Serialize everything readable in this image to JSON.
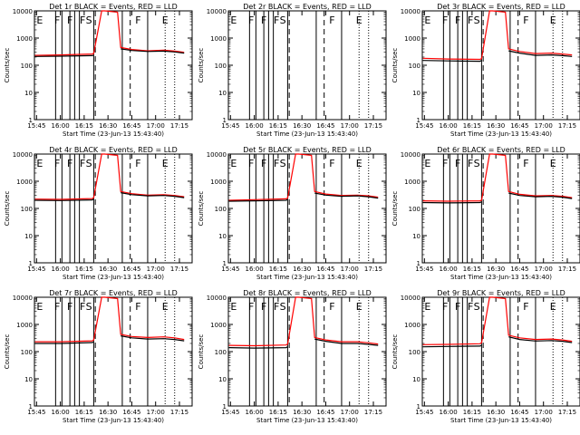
{
  "chart_data": {
    "type": "line",
    "x_unit": "time",
    "time_ticks": [
      "15:45",
      "16:00",
      "16:15",
      "16:30",
      "16:45",
      "17:00",
      "17:15"
    ],
    "y_ticks": [
      "1",
      "10",
      "100",
      "1000",
      "10000"
    ],
    "ylabel": "Counts/sec",
    "xlabel": "Start Time (23-Jun-13 15:43:40)",
    "ylim": [
      1,
      10000
    ],
    "xlim": [
      "15:43:40",
      "17:23:00"
    ],
    "yscale": "log",
    "legend": "BLACK = Events, RED = LLD",
    "colors": {
      "events": "#000000",
      "lld": "#ff0000"
    },
    "event_lines": {
      "solid": [
        "15:57",
        "16:01",
        "16:06",
        "16:09",
        "16:12",
        "16:21",
        "16:39",
        "16:55"
      ],
      "dashed": [
        "16:22",
        "16:44"
      ],
      "dotted": [
        "17:06",
        "17:12"
      ]
    },
    "markers": [
      {
        "label": "E",
        "time": "15:47"
      },
      {
        "label": "F",
        "time": "15:58"
      },
      {
        "label": "F",
        "time": "16:06"
      },
      {
        "label": "F",
        "time": "16:14"
      },
      {
        "label": "S",
        "time": "16:18"
      },
      {
        "label": "F",
        "time": "16:49"
      },
      {
        "label": "E",
        "time": "17:06"
      }
    ],
    "panels": [
      {
        "title": "Det 1r BLACK = Events, RED = LLD",
        "events_level": 220,
        "lld_level": 250,
        "post_level": 330,
        "time": [
          "15:44",
          "16:00",
          "16:20",
          "16:21",
          "16:26",
          "16:28",
          "16:36",
          "16:38",
          "16:45",
          "16:55",
          "17:05",
          "17:12",
          "17:18"
        ],
        "lld": [
          230,
          240,
          260,
          270,
          10000,
          10000,
          9000,
          450,
          380,
          340,
          360,
          330,
          300
        ],
        "events": [
          210,
          215,
          225,
          235,
          null,
          null,
          null,
          400,
          350,
          320,
          330,
          310,
          280
        ]
      },
      {
        "title": "Det 2r BLACK = Events, RED = LLD",
        "events_level": null,
        "lld_level": null,
        "post_level": null,
        "time": [],
        "lld": [],
        "events": []
      },
      {
        "title": "Det 3r BLACK = Events, RED = LLD",
        "events_level": 140,
        "lld_level": 170,
        "post_level": 260,
        "time": [
          "15:44",
          "16:00",
          "16:20",
          "16:21",
          "16:26",
          "16:28",
          "16:36",
          "16:38",
          "16:45",
          "16:55",
          "17:05",
          "17:12",
          "17:18"
        ],
        "lld": [
          180,
          170,
          165,
          175,
          10000,
          10000,
          9000,
          400,
          320,
          270,
          280,
          260,
          240
        ],
        "events": [
          150,
          145,
          140,
          150,
          null,
          null,
          null,
          340,
          280,
          230,
          240,
          225,
          210
        ]
      },
      {
        "title": "Det 4r BLACK = Events, RED = LLD",
        "events_level": 200,
        "lld_level": 220,
        "post_level": 300,
        "time": [
          "15:44",
          "16:00",
          "16:20",
          "16:21",
          "16:26",
          "16:28",
          "16:36",
          "16:38",
          "16:45",
          "16:55",
          "17:05",
          "17:12",
          "17:18"
        ],
        "lld": [
          220,
          215,
          230,
          250,
          10000,
          10000,
          9000,
          420,
          350,
          310,
          320,
          300,
          270
        ],
        "events": [
          200,
          195,
          205,
          220,
          null,
          null,
          null,
          380,
          320,
          290,
          300,
          280,
          250
        ]
      },
      {
        "title": "Det 5r BLACK = Events, RED = LLD",
        "events_level": 190,
        "lld_level": 210,
        "post_level": 290,
        "time": [
          "15:44",
          "16:00",
          "16:20",
          "16:21",
          "16:26",
          "16:28",
          "16:36",
          "16:38",
          "16:45",
          "16:55",
          "17:05",
          "17:12",
          "17:18"
        ],
        "lld": [
          200,
          210,
          225,
          240,
          10000,
          10000,
          9000,
          420,
          340,
          300,
          310,
          290,
          260
        ],
        "events": [
          185,
          190,
          200,
          215,
          null,
          null,
          null,
          370,
          310,
          280,
          290,
          270,
          240
        ]
      },
      {
        "title": "Det 6r BLACK = Events, RED = LLD",
        "events_level": 160,
        "lld_level": 190,
        "post_level": 290,
        "time": [
          "15:44",
          "16:00",
          "16:20",
          "16:21",
          "16:26",
          "16:28",
          "16:36",
          "16:38",
          "16:45",
          "16:55",
          "17:05",
          "17:12",
          "17:18"
        ],
        "lld": [
          190,
          185,
          190,
          200,
          10000,
          10000,
          9000,
          420,
          330,
          290,
          300,
          280,
          250
        ],
        "events": [
          165,
          160,
          165,
          175,
          null,
          null,
          null,
          370,
          300,
          270,
          280,
          260,
          230
        ]
      },
      {
        "title": "Det 7r BLACK = Events, RED = LLD",
        "events_level": 200,
        "lld_level": 230,
        "post_level": 320,
        "time": [
          "15:44",
          "16:00",
          "16:20",
          "16:21",
          "16:26",
          "16:28",
          "16:36",
          "16:38",
          "16:45",
          "16:55",
          "17:05",
          "17:12",
          "17:18"
        ],
        "lld": [
          230,
          230,
          250,
          270,
          10000,
          10000,
          9000,
          430,
          360,
          330,
          350,
          320,
          280
        ],
        "events": [
          200,
          200,
          215,
          230,
          null,
          null,
          null,
          380,
          320,
          290,
          300,
          280,
          250
        ]
      },
      {
        "title": "Det 8r BLACK = Events, RED = LLD",
        "events_level": 130,
        "lld_level": 170,
        "post_level": 230,
        "time": [
          "15:44",
          "16:00",
          "16:20",
          "16:21",
          "16:26",
          "16:28",
          "16:36",
          "16:38",
          "16:45",
          "16:55",
          "17:05",
          "17:12",
          "17:18"
        ],
        "lld": [
          170,
          165,
          175,
          190,
          10000,
          10000,
          9000,
          330,
          270,
          230,
          230,
          210,
          190
        ],
        "events": [
          140,
          135,
          140,
          150,
          null,
          null,
          null,
          290,
          240,
          200,
          200,
          185,
          170
        ]
      },
      {
        "title": "Det 9r BLACK = Events, RED = LLD",
        "events_level": 150,
        "lld_level": 180,
        "post_level": 270,
        "time": [
          "15:44",
          "16:00",
          "16:20",
          "16:21",
          "16:26",
          "16:28",
          "16:36",
          "16:38",
          "16:45",
          "16:55",
          "17:05",
          "17:12",
          "17:18"
        ],
        "lld": [
          180,
          185,
          195,
          210,
          10000,
          10000,
          9000,
          400,
          320,
          280,
          290,
          270,
          240
        ],
        "events": [
          150,
          155,
          160,
          170,
          null,
          null,
          null,
          350,
          280,
          245,
          255,
          240,
          215
        ]
      }
    ]
  }
}
